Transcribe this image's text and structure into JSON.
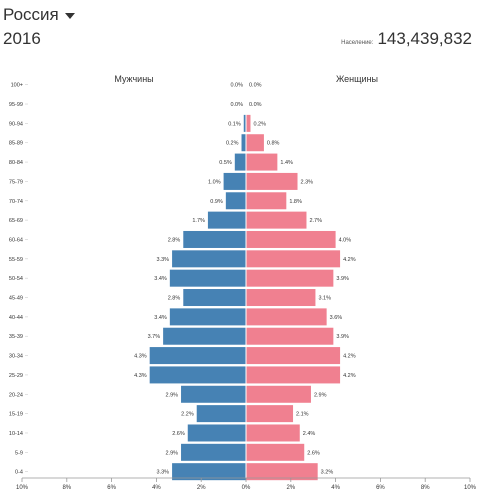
{
  "header": {
    "country": "Россия",
    "year": "2016",
    "population_label": "Население:",
    "population_value": "143,439,832"
  },
  "colors": {
    "male": "#4682b4",
    "female": "#f08090",
    "axis": "#999999",
    "text": "#333333"
  },
  "chart_data": {
    "type": "bar",
    "orientation": "horizontal-butterfly",
    "categories": [
      "100+",
      "95-99",
      "90-94",
      "85-89",
      "80-84",
      "75-79",
      "70-74",
      "65-69",
      "60-64",
      "55-59",
      "50-54",
      "45-49",
      "40-44",
      "35-39",
      "30-34",
      "25-29",
      "20-24",
      "15-19",
      "10-14",
      "5-9",
      "0-4"
    ],
    "series": [
      {
        "name": "Мужчины",
        "color": "#4682b4",
        "values": [
          0.0,
          0.0,
          0.1,
          0.2,
          0.5,
          1.0,
          0.9,
          1.7,
          2.8,
          3.3,
          3.4,
          2.8,
          3.4,
          3.7,
          4.3,
          4.3,
          2.9,
          2.2,
          2.6,
          2.9,
          3.3
        ],
        "labels": [
          "0.0%",
          "0.0%",
          "0.1%",
          "0.2%",
          "0.5%",
          "1.0%",
          "0.9%",
          "1.7%",
          "2.8%",
          "3.3%",
          "3.4%",
          "2.8%",
          "3.4%",
          "3.7%",
          "4.3%",
          "4.3%",
          "2.9%",
          "2.2%",
          "2.6%",
          "2.9%",
          "3.3%"
        ]
      },
      {
        "name": "Женщины",
        "color": "#f08090",
        "values": [
          0.0,
          0.0,
          0.2,
          0.8,
          1.4,
          2.3,
          1.8,
          2.7,
          4.0,
          4.2,
          3.9,
          3.1,
          3.6,
          3.9,
          4.2,
          4.2,
          2.9,
          2.1,
          2.4,
          2.6,
          3.2
        ],
        "labels": [
          "0.0%",
          "0.0%",
          "0.2%",
          "0.8%",
          "1.4%",
          "2.3%",
          "1.8%",
          "2.7%",
          "4.0%",
          "4.2%",
          "3.9%",
          "3.1%",
          "3.6%",
          "3.9%",
          "4.2%",
          "4.2%",
          "2.9%",
          "2.1%",
          "2.4%",
          "2.6%",
          "3.2%"
        ]
      }
    ],
    "xlim": [
      -10,
      10
    ],
    "xticks": [
      -10,
      -8,
      -6,
      -4,
      -2,
      0,
      2,
      4,
      6,
      8,
      10
    ],
    "xtick_labels": [
      "10%",
      "8%",
      "6%",
      "4%",
      "2%",
      "0%",
      "2%",
      "4%",
      "6%",
      "8%",
      "10%"
    ],
    "grid": false
  }
}
